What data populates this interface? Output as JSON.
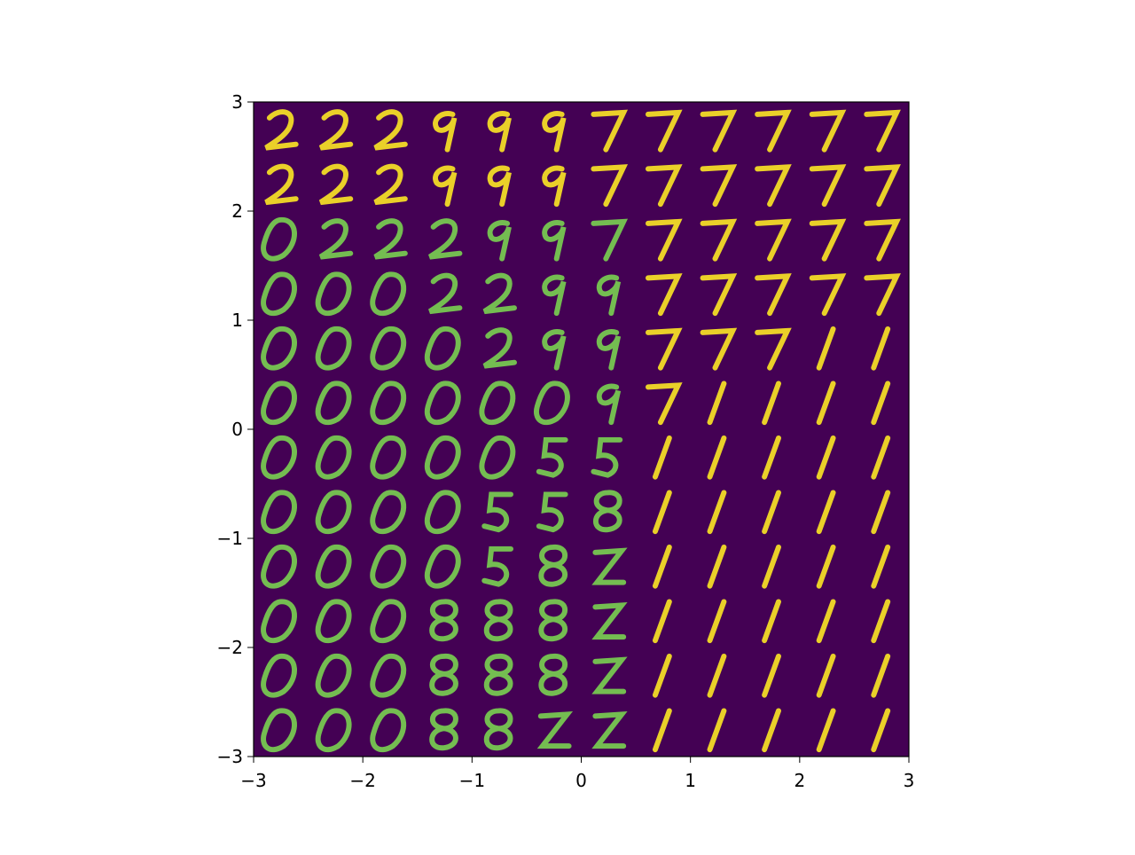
{
  "chart_data": {
    "type": "image",
    "xlim": [
      -3,
      3
    ],
    "ylim": [
      -3,
      3
    ],
    "xticks": [
      {
        "value": -3,
        "label": "−3"
      },
      {
        "value": -2,
        "label": "−2"
      },
      {
        "value": -1,
        "label": "−1"
      },
      0,
      1,
      2,
      3
    ],
    "yticks": [
      {
        "value": -3,
        "label": "−3"
      },
      {
        "value": -2,
        "label": "−2"
      },
      {
        "value": -1,
        "label": "−1"
      },
      0,
      1,
      2,
      3
    ],
    "color": "#440154"
  }
}
